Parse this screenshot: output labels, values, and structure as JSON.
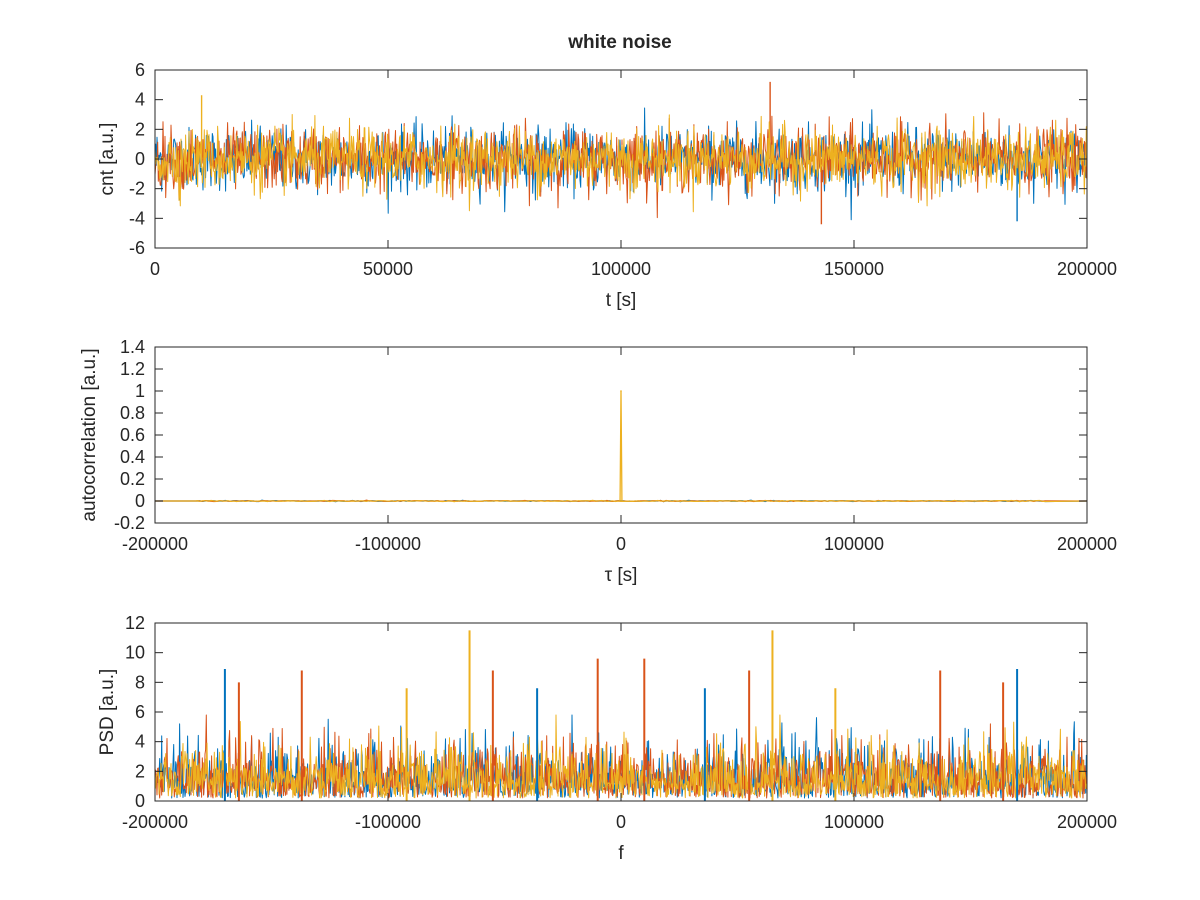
{
  "figure": {
    "title": "white noise"
  },
  "colors": {
    "series1": "#0072BD",
    "series2": "#D95319",
    "series3": "#EDB120",
    "axis": "#262626",
    "background": "#ffffff"
  },
  "chart_data": [
    {
      "type": "line",
      "title": "white noise",
      "xlabel": "t [s]",
      "ylabel": "cnt [a.u.]",
      "xlim": [
        0,
        200000
      ],
      "ylim": [
        -6,
        6
      ],
      "xticks": [
        0,
        50000,
        100000,
        150000,
        200000
      ],
      "yticks": [
        -6,
        -4,
        -2,
        0,
        2,
        4,
        6
      ],
      "xtick_labels": [
        "0",
        "50000",
        "100000",
        "150000",
        "200000"
      ],
      "ytick_labels": [
        "-6",
        "-4",
        "-2",
        "0",
        "2",
        "4",
        "6"
      ],
      "grid": false,
      "series_count": 3,
      "signal": "gaussian white noise, zero mean, unit variance, envelope approximately -4 to 4",
      "notable_points": [
        {
          "x": 132000,
          "y": 5.2
        },
        {
          "x": 10000,
          "y": 4.3
        },
        {
          "x": 185000,
          "y": -4.2
        },
        {
          "x": 143000,
          "y": -4.4
        }
      ]
    },
    {
      "type": "line",
      "title": "",
      "xlabel": "τ [s]",
      "ylabel": "autocorrelation [a.u.]",
      "xlim": [
        -200000,
        200000
      ],
      "ylim": [
        -0.2,
        1.4
      ],
      "xticks": [
        -200000,
        -100000,
        0,
        100000,
        200000
      ],
      "yticks": [
        -0.2,
        0,
        0.2,
        0.4,
        0.6,
        0.8,
        1,
        1.2,
        1.4
      ],
      "xtick_labels": [
        "-200000",
        "-100000",
        "0",
        "100000",
        "200000"
      ],
      "ytick_labels": [
        "-0.2",
        "0",
        "0.2",
        "0.4",
        "0.6",
        "0.8",
        "1",
        "1.2",
        "1.4"
      ],
      "grid": false,
      "series_count": 3,
      "peak": {
        "x": 0,
        "y": 1
      },
      "baseline": 0,
      "support": [
        -182000,
        182000
      ]
    },
    {
      "type": "line",
      "title": "",
      "xlabel": "f",
      "ylabel": "PSD [a.u.]",
      "xlim": [
        -200000,
        200000
      ],
      "ylim": [
        0,
        12
      ],
      "xticks": [
        -200000,
        -100000,
        0,
        100000,
        200000
      ],
      "yticks": [
        0,
        2,
        4,
        6,
        8,
        10,
        12
      ],
      "xtick_labels": [
        "-200000",
        "-100000",
        "0",
        "100000",
        "200000"
      ],
      "ytick_labels": [
        "0",
        "2",
        "4",
        "6",
        "8",
        "10",
        "12"
      ],
      "grid": false,
      "series_count": 3,
      "signal": "flat noisy spectrum, dense band up to about 4-5, symmetric about f = 0",
      "peaks": [
        {
          "x": -65000,
          "y": 11.5,
          "series": 3
        },
        {
          "x": 65000,
          "y": 11.5,
          "series": 3
        },
        {
          "x": -10000,
          "y": 9.6,
          "series": 2
        },
        {
          "x": 10000,
          "y": 9.6,
          "series": 2
        },
        {
          "x": -170000,
          "y": 8.9,
          "series": 1
        },
        {
          "x": 170000,
          "y": 8.9,
          "series": 1
        },
        {
          "x": -137000,
          "y": 8.8,
          "series": 2
        },
        {
          "x": 137000,
          "y": 8.8,
          "series": 2
        },
        {
          "x": -55000,
          "y": 8.8,
          "series": 2
        },
        {
          "x": 55000,
          "y": 8.8,
          "series": 2
        },
        {
          "x": -164000,
          "y": 8.0,
          "series": 2
        },
        {
          "x": 164000,
          "y": 8.0,
          "series": 2
        },
        {
          "x": -92000,
          "y": 7.6,
          "series": 3
        },
        {
          "x": 92000,
          "y": 7.6,
          "series": 3
        },
        {
          "x": -36000,
          "y": 7.6,
          "series": 1
        },
        {
          "x": 36000,
          "y": 7.6,
          "series": 1
        }
      ]
    }
  ]
}
